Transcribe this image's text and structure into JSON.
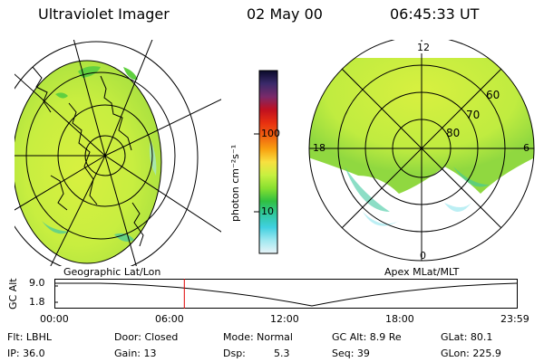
{
  "header": {
    "title": "Ultraviolet Imager",
    "date": "02 May 00",
    "time": "06:45:33 UT"
  },
  "panels": {
    "left_label": "Geographic Lat/Lon",
    "right_label": "Apex MLat/MLT",
    "mlt_labels": [
      "12",
      "18",
      "6",
      "0"
    ],
    "mlat_labels": [
      "60",
      "70",
      "80"
    ]
  },
  "colorbar": {
    "unit": "photon cm⁻²s⁻¹",
    "ticks": [
      "100",
      "10"
    ],
    "colors": [
      "#0a0a2a",
      "#3a2a6a",
      "#7a2a6a",
      "#c01020",
      "#e83010",
      "#f06010",
      "#f8a010",
      "#f8e040",
      "#c8f040",
      "#88e030",
      "#30c040",
      "#30c8a0",
      "#40d0e0",
      "#a0e8f0",
      "#e8f4f8"
    ]
  },
  "altitude_plot": {
    "ylabel": "GC Alt",
    "ytick_top": "9.0",
    "ytick_bottom": "1.8",
    "xticks": [
      "00:00",
      "06:00",
      "12:00",
      "18:00",
      "23:59"
    ],
    "current_time_fraction": 0.281
  },
  "footer": {
    "flt": "Flt: LBHL",
    "ip": "IP: 36.0",
    "door": "Door: Closed",
    "gain": "Gain: 13",
    "mode": "Mode: Normal",
    "dsp_label": "Dsp:",
    "dsp_value": "5.3",
    "gcalt": "GC Alt: 8.9 Re",
    "seq": "Seq: 39",
    "glat": "GLat:  80.1",
    "glon": "GLon: 225.9"
  }
}
